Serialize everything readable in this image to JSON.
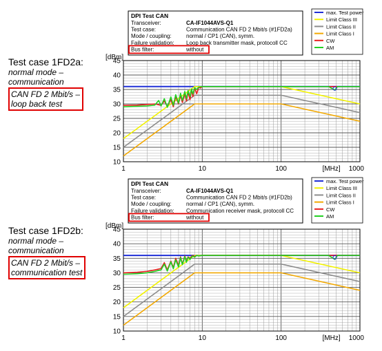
{
  "panels": [
    {
      "side_label": {
        "title": "Test case 1FD2a:",
        "plain_lines": [
          "normal mode –",
          "communication"
        ],
        "boxed_lines": [
          "CAN FD 2 Mbit/s –",
          "loop back test"
        ]
      },
      "info_box": {
        "heading": "DPI Test CAN",
        "rows": [
          {
            "key": "Transceiver:",
            "value": "CA-IF1044AVS-Q1",
            "bold": true
          },
          {
            "key": "Test case:",
            "value": "Communication CAN FD 2 Mbit/s (#1FD2a)"
          },
          {
            "key": "Mode / coupling:",
            "value": "normal / CP1 (CAN), symm."
          },
          {
            "key": "Failure validation:",
            "value": "Loop back transmitter mask, protocoll CC"
          },
          {
            "key": "Bus filter:",
            "value": "without",
            "highlight": true
          }
        ]
      }
    },
    {
      "side_label": {
        "title": "Test case 1FD2b:",
        "plain_lines": [
          "normal mode –",
          "communication"
        ],
        "boxed_lines": [
          "CAN FD 2 Mbit/s –",
          "communication test"
        ]
      },
      "info_box": {
        "heading": "DPI Test CAN",
        "rows": [
          {
            "key": "Transceiver:",
            "value": "CA-IF1044AVS-Q1",
            "bold": true
          },
          {
            "key": "Test case:",
            "value": "Communication CAN FD 2 Mbit/s (#1FD2b)"
          },
          {
            "key": "Mode / coupling:",
            "value": "normal / CP1 (CAN), symm."
          },
          {
            "key": "Failure validation:",
            "value": "Communication receiver mask, protocoll CC"
          },
          {
            "key": "Bus filter:",
            "value": "without",
            "highlight": true
          }
        ]
      }
    }
  ],
  "colors": {
    "max_test_power": "#1f2fd6",
    "limit_class_3": "#f2f200",
    "limit_class_2": "#8c8c8c",
    "limit_class_1": "#f2a800",
    "cw": "#e81c1c",
    "am": "#22d022",
    "grid": "#9a9a9a",
    "highlight": "#e00000"
  },
  "chart_data": [
    {
      "type": "line",
      "title": "",
      "xlabel": "[MHz]",
      "ylabel": "[dBm]",
      "x_scale": "log",
      "xlim": [
        1,
        1000
      ],
      "ylim": [
        10,
        45
      ],
      "x_ticks": [
        1,
        10,
        100,
        1000
      ],
      "x_tick_labels": [
        "1",
        "10",
        "100",
        "1000"
      ],
      "y_ticks": [
        10,
        15,
        20,
        25,
        30,
        35,
        40,
        45
      ],
      "y_tick_labels": [
        "10",
        "15",
        "20",
        "25",
        "30",
        "35",
        "40",
        "45"
      ],
      "grid": true,
      "legend_position": "top-right",
      "legend": [
        "max. Test power",
        "Limit Class III",
        "Limit Class II",
        "Limit Class I",
        "CW",
        "AM"
      ],
      "series": [
        {
          "name": "max. Test power",
          "color_key": "max_test_power",
          "x": [
            1,
            1000
          ],
          "y": [
            36,
            36
          ]
        },
        {
          "name": "Limit Class III",
          "color_key": "limit_class_3",
          "x": [
            1,
            8,
            100,
            1000
          ],
          "y": [
            18,
            36,
            36,
            30
          ]
        },
        {
          "name": "Limit Class II",
          "color_key": "limit_class_2",
          "x": [
            1,
            8,
            100,
            1000
          ],
          "y": [
            15,
            33,
            33,
            27
          ]
        },
        {
          "name": "Limit Class I",
          "color_key": "limit_class_1",
          "x": [
            1,
            8,
            100,
            1000
          ],
          "y": [
            12,
            30,
            30,
            24
          ]
        },
        {
          "name": "CW",
          "color_key": "cw",
          "x": [
            1,
            1.5,
            2,
            2.5,
            3,
            3.3,
            3.6,
            4,
            4.3,
            4.6,
            5,
            5.3,
            5.6,
            6,
            6.3,
            6.6,
            7,
            7.3,
            7.6,
            8,
            8.5,
            9,
            9.5,
            10,
            15,
            30,
            60,
            100,
            200,
            400,
            500,
            600,
            800,
            1000
          ],
          "y": [
            29.5,
            29.6,
            29.8,
            30.0,
            29.5,
            31.0,
            29.2,
            31.5,
            29.0,
            32.5,
            30.0,
            33.0,
            30.5,
            33.5,
            31.0,
            34.0,
            31.5,
            35.0,
            32.5,
            35.5,
            33.5,
            35.8,
            35.5,
            36,
            36,
            36,
            36,
            36,
            36,
            36,
            36,
            36,
            36,
            36
          ]
        },
        {
          "name": "AM",
          "color_key": "am",
          "x": [
            1,
            1.5,
            2,
            2.5,
            2.8,
            3,
            3.3,
            3.6,
            4,
            4.3,
            4.6,
            5,
            5.3,
            5.6,
            6,
            6.3,
            6.6,
            7,
            7.3,
            7.6,
            8,
            8.5,
            9,
            10,
            15,
            30,
            60,
            100,
            200,
            400,
            480,
            520,
            600,
            800,
            1000
          ],
          "y": [
            29.0,
            29.2,
            29.3,
            29.6,
            31.2,
            29.3,
            31.8,
            28.8,
            32.4,
            29.5,
            33.2,
            30.3,
            33.7,
            31.2,
            34.3,
            31.8,
            34.6,
            32.6,
            35.2,
            33.4,
            35.6,
            35.0,
            35.8,
            36,
            36,
            36,
            36,
            36,
            36,
            36,
            34.8,
            36,
            36,
            36,
            36
          ]
        }
      ]
    },
    {
      "type": "line",
      "title": "",
      "xlabel": "[MHz]",
      "ylabel": "[dBm]",
      "x_scale": "log",
      "xlim": [
        1,
        1000
      ],
      "ylim": [
        10,
        45
      ],
      "x_ticks": [
        1,
        10,
        100,
        1000
      ],
      "x_tick_labels": [
        "1",
        "10",
        "100",
        "1000"
      ],
      "y_ticks": [
        10,
        15,
        20,
        25,
        30,
        35,
        40,
        45
      ],
      "y_tick_labels": [
        "10",
        "15",
        "20",
        "25",
        "30",
        "35",
        "40",
        "45"
      ],
      "grid": true,
      "legend_position": "top-right",
      "legend": [
        "max. Test power",
        "Limit Class III",
        "Limit Class II",
        "Limit Class I",
        "CW",
        "AM"
      ],
      "series": [
        {
          "name": "max. Test power",
          "color_key": "max_test_power",
          "x": [
            1,
            1000
          ],
          "y": [
            36,
            36
          ]
        },
        {
          "name": "Limit Class III",
          "color_key": "limit_class_3",
          "x": [
            1,
            8,
            100,
            1000
          ],
          "y": [
            18,
            36,
            36,
            30
          ]
        },
        {
          "name": "Limit Class II",
          "color_key": "limit_class_2",
          "x": [
            1,
            8,
            100,
            1000
          ],
          "y": [
            15,
            33,
            33,
            27
          ]
        },
        {
          "name": "Limit Class I",
          "color_key": "limit_class_1",
          "x": [
            1,
            8,
            100,
            1000
          ],
          "y": [
            12,
            30,
            30,
            24
          ]
        },
        {
          "name": "CW",
          "color_key": "cw",
          "x": [
            1,
            1.5,
            2,
            2.5,
            3,
            3.3,
            3.6,
            4,
            4.3,
            4.6,
            5,
            5.3,
            5.6,
            6,
            6.3,
            6.6,
            7,
            7.5,
            8,
            8.5,
            9,
            10,
            15,
            30,
            60,
            100,
            200,
            400,
            500,
            600,
            800,
            1000
          ],
          "y": [
            30.0,
            30.2,
            30.5,
            31.0,
            31.5,
            33.5,
            31.0,
            34.0,
            31.8,
            35.0,
            32.5,
            35.5,
            33.0,
            35.8,
            34.0,
            35.5,
            35.0,
            36,
            35.6,
            36,
            35.8,
            36,
            36,
            36,
            36,
            36,
            36,
            36,
            36,
            36,
            36,
            36
          ]
        },
        {
          "name": "AM",
          "color_key": "am",
          "x": [
            1,
            1.5,
            2,
            2.5,
            3,
            3.3,
            3.6,
            4,
            4.3,
            4.6,
            5,
            5.3,
            5.6,
            6,
            6.3,
            6.6,
            7,
            7.5,
            8,
            8.5,
            9,
            10,
            15,
            30,
            60,
            100,
            200,
            400,
            480,
            520,
            600,
            800,
            1000
          ],
          "y": [
            29.5,
            29.7,
            30.0,
            30.5,
            31.0,
            33.0,
            30.6,
            33.8,
            31.4,
            34.5,
            32.0,
            35.2,
            32.8,
            35.6,
            33.6,
            35.4,
            34.6,
            35.8,
            35.4,
            36,
            35.8,
            36,
            36,
            36,
            36,
            36,
            36,
            36,
            34.6,
            36,
            36,
            36,
            36
          ]
        }
      ]
    }
  ]
}
